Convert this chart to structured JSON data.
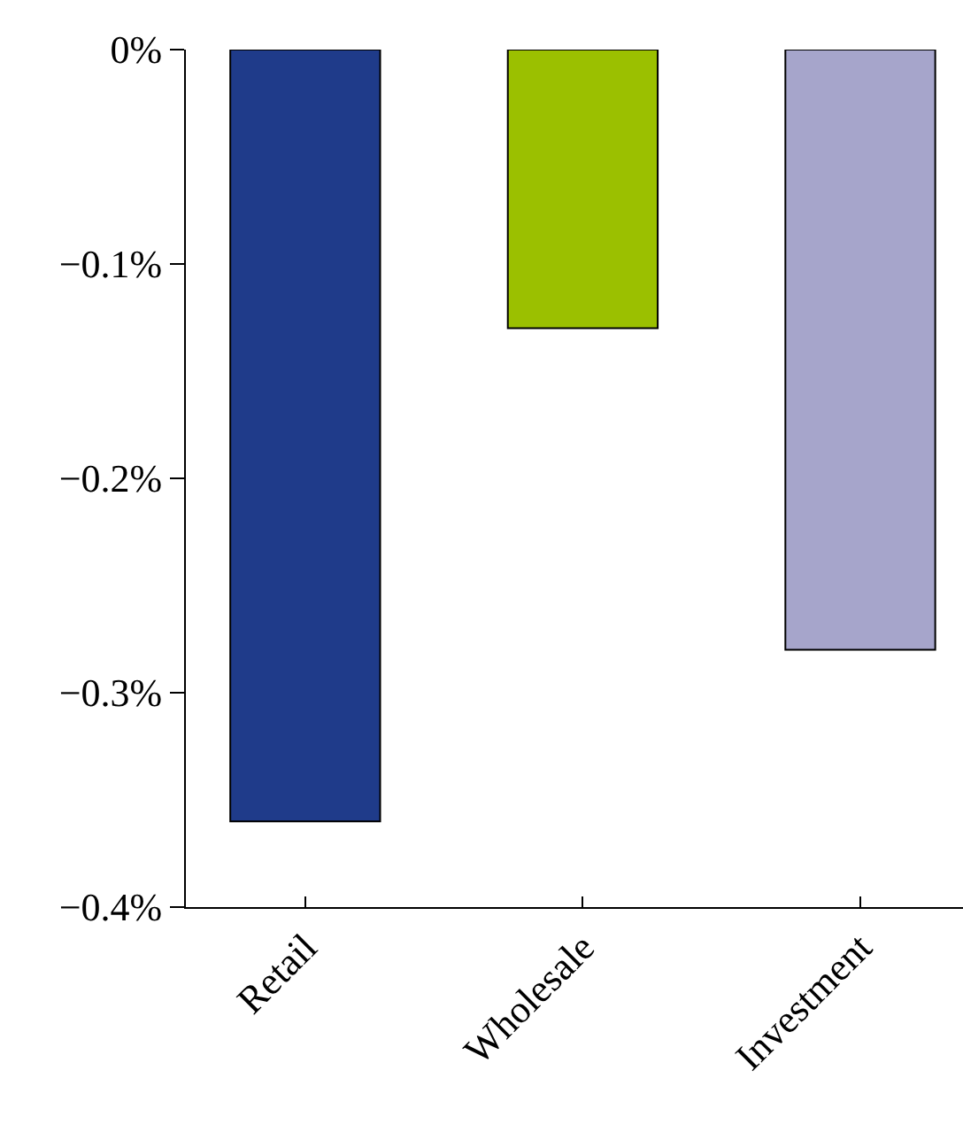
{
  "chart_data": {
    "type": "bar",
    "categories": [
      "Retail",
      "Wholesale",
      "Investment"
    ],
    "values": [
      -0.36,
      -0.13,
      -0.28
    ],
    "colors": [
      "#1f3b8a",
      "#9bc000",
      "#a6a5cb"
    ],
    "ylim": [
      -0.4,
      0
    ],
    "yticks": [
      {
        "value": 0,
        "label": "0%"
      },
      {
        "value": -0.1,
        "label": "−0.1%"
      },
      {
        "value": -0.2,
        "label": "−0.2%"
      },
      {
        "value": -0.3,
        "label": "−0.3%"
      },
      {
        "value": -0.4,
        "label": "−0.4%"
      }
    ]
  }
}
